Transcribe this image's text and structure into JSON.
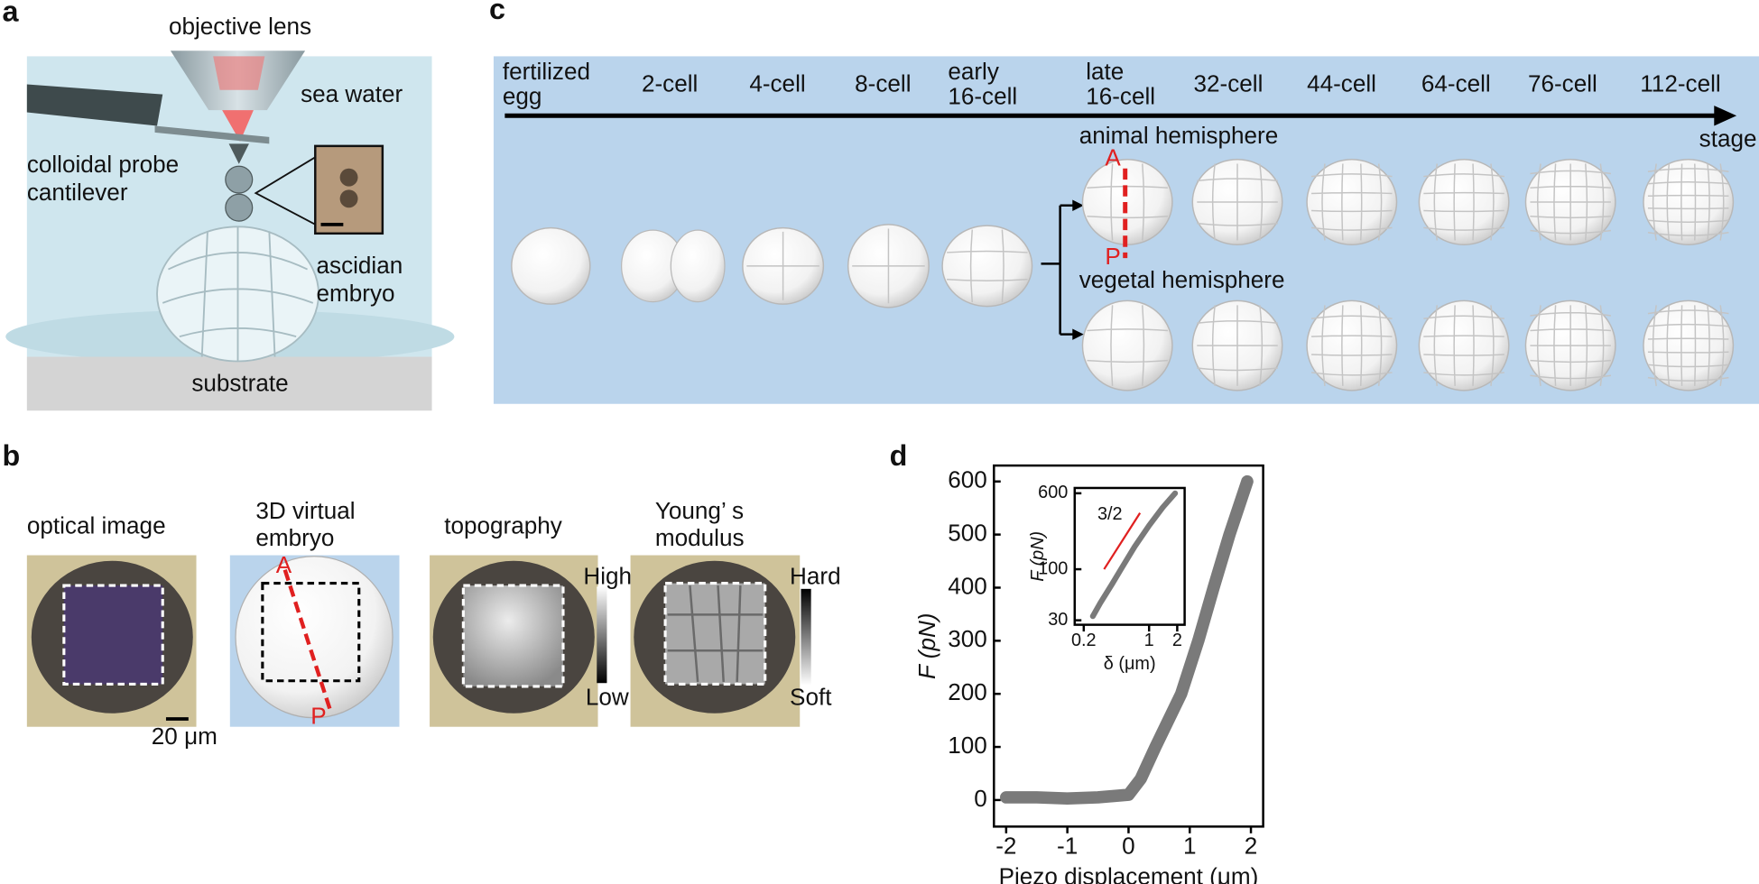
{
  "panel_labels": [
    "a",
    "b",
    "c",
    "d"
  ],
  "a": {
    "objective_lens": "objective lens",
    "sea_water": "sea water",
    "cantilever": [
      "colloidal probe",
      "cantilever"
    ],
    "embryo": [
      "ascidian",
      "embryo"
    ],
    "substrate": "substrate"
  },
  "b": {
    "titles": [
      [
        "optical image"
      ],
      [
        "3D virtual",
        "embryo"
      ],
      [
        "topography"
      ],
      [
        "Young’ s",
        "modulus"
      ]
    ],
    "scale_bar": "20 μm",
    "axis_a": "A",
    "axis_p": "P",
    "topo_high": "High",
    "topo_low": "Low",
    "mod_hard": "Hard",
    "mod_soft": "Soft"
  },
  "c": {
    "stages": [
      [
        "fertilized",
        "egg"
      ],
      [
        "2-cell"
      ],
      [
        "4-cell"
      ],
      [
        "8-cell"
      ],
      [
        "early",
        "16-cell"
      ],
      [
        "late",
        "16-cell"
      ],
      [
        "32-cell"
      ],
      [
        "44-cell"
      ],
      [
        "64-cell"
      ],
      [
        "76-cell"
      ],
      [
        "112-cell"
      ]
    ],
    "axis_label": "stage",
    "animal": "animal hemisphere",
    "vegetal": "vegetal hemisphere",
    "axis_a": "A",
    "axis_p": "P"
  },
  "chart_data": [
    {
      "type": "line",
      "x_label": "Piezo displacement (μm)",
      "y_label": "F (pN)",
      "x": [
        -2,
        -1.5,
        -1,
        -0.5,
        0,
        0.2,
        0.44,
        0.86,
        1.14,
        1.39,
        1.65,
        1.94
      ],
      "series": [
        {
          "color": "#7a7a7a",
          "values": [
            5,
            5,
            3,
            5,
            10,
            40,
            100,
            200,
            300,
            400,
            500,
            600
          ]
        }
      ],
      "xlim": [
        -2.2,
        2.2
      ],
      "ylim": [
        -50,
        630
      ],
      "xticks": [
        -2,
        -1,
        0,
        1,
        2
      ],
      "yticks": [
        0,
        100,
        200,
        300,
        400,
        500,
        600
      ]
    },
    {
      "type": "line",
      "log_x": true,
      "log_y": true,
      "x_label": "δ (μm)",
      "y_label": "F (pN)",
      "x": [
        0.25,
        0.3,
        0.4,
        0.5,
        0.7,
        1.0,
        1.4,
        1.9
      ],
      "series": [
        {
          "color": "#7a7a7a",
          "values": [
            33,
            45,
            70,
            100,
            170,
            280,
            430,
            600
          ]
        }
      ],
      "xlim": [
        0.16,
        2.4
      ],
      "ylim": [
        27,
        680
      ],
      "xticks": [
        0.2,
        1,
        2
      ],
      "yticks": [
        30,
        100,
        600
      ],
      "guide": {
        "label": "3/2",
        "slope": 1.5,
        "color": "#e02020"
      }
    }
  ]
}
